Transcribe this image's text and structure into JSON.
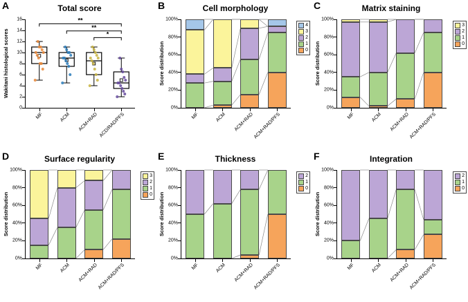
{
  "chart_data": [
    {
      "label": "A",
      "title": "Total score",
      "type": "box",
      "ylabel": "Wakitani histological scores",
      "ymin": 0,
      "ymax": 16,
      "ytick_step": 2,
      "categories": [
        "MF",
        "ACM",
        "ACM+RAD",
        "ACD/RAD/PFS"
      ],
      "boxes": [
        {
          "group": "MF",
          "q1": 8,
          "median": 10,
          "q3": 11,
          "lo": 5,
          "hi": 12,
          "mean": 9.4,
          "color": "#E8893C",
          "points": [
            5,
            7,
            8,
            8,
            9,
            9.5,
            10,
            10,
            10.5,
            11,
            11,
            12
          ]
        },
        {
          "group": "ACM",
          "q1": 7.5,
          "median": 9,
          "q3": 10,
          "lo": 4.5,
          "hi": 11,
          "mean": 8.6,
          "color": "#2E7EBB",
          "points": [
            4.5,
            6,
            7.5,
            8,
            8.5,
            9,
            9,
            9.5,
            10,
            10,
            10.5,
            11
          ]
        },
        {
          "group": "ACM+RAD",
          "q1": 6,
          "median": 8.5,
          "q3": 10,
          "lo": 4,
          "hi": 11,
          "mean": 8.0,
          "color": "#C9B544",
          "points": [
            4,
            5,
            6,
            7,
            8,
            8.5,
            9,
            9,
            9.5,
            10,
            10.5,
            11
          ]
        },
        {
          "group": "ACD/RAD/PFS",
          "q1": 3.5,
          "median": 4.5,
          "q3": 6.5,
          "lo": 2,
          "hi": 9,
          "mean": 5.0,
          "color": "#6A4FA0",
          "points": [
            2,
            2.5,
            3,
            3.5,
            4,
            4.5,
            4.5,
            5,
            5.5,
            6.5,
            7,
            9
          ]
        }
      ],
      "significance": [
        {
          "from": 0,
          "to": 3,
          "sig_label": "**",
          "y": 15.2
        },
        {
          "from": 1,
          "to": 3,
          "sig_label": "**",
          "y": 13.9
        },
        {
          "from": 2,
          "to": 3,
          "sig_label": "*",
          "y": 12.7
        }
      ]
    },
    {
      "label": "B",
      "title": "Cell morphology",
      "type": "stacked",
      "ylabel": "Score distribution",
      "yticks": [
        "0%",
        "20%",
        "40%",
        "60%",
        "80%",
        "100%"
      ],
      "categories": [
        "MF",
        "ACM",
        "ACM+RAD",
        "ACM+RAD/PFS"
      ],
      "legend": [
        {
          "score": "4",
          "color": "#A5C7E9"
        },
        {
          "score": "3",
          "color": "#FBF49B"
        },
        {
          "score": "2",
          "color": "#BCA6D6"
        },
        {
          "score": "1",
          "color": "#A8D38A"
        },
        {
          "score": "0",
          "color": "#F6A45B"
        }
      ],
      "series": [
        {
          "score": "0",
          "color": "#F6A45B",
          "values": [
            0,
            3,
            15,
            40
          ]
        },
        {
          "score": "1",
          "color": "#A8D38A",
          "values": [
            28,
            27,
            40,
            45
          ]
        },
        {
          "score": "2",
          "color": "#BCA6D6",
          "values": [
            10,
            15,
            35,
            7
          ]
        },
        {
          "score": "3",
          "color": "#FBF49B",
          "values": [
            50,
            55,
            10,
            0
          ]
        },
        {
          "score": "4",
          "color": "#A5C7E9",
          "values": [
            12,
            0,
            0,
            8
          ]
        }
      ]
    },
    {
      "label": "C",
      "title": "Matrix staining",
      "type": "stacked",
      "ylabel": "Score distribution",
      "yticks": [
        "0%",
        "20%",
        "40%",
        "60%",
        "80%",
        "100%"
      ],
      "categories": [
        "MF",
        "ACM",
        "ACM+RAD",
        "ACM+RAD/PFS"
      ],
      "legend": [
        {
          "score": "3",
          "color": "#FBF49B"
        },
        {
          "score": "2",
          "color": "#BCA6D6"
        },
        {
          "score": "1",
          "color": "#A8D38A"
        },
        {
          "score": "0",
          "color": "#F6A45B"
        }
      ],
      "series": [
        {
          "score": "0",
          "color": "#F6A45B",
          "values": [
            12,
            2,
            10,
            40
          ]
        },
        {
          "score": "1",
          "color": "#A8D38A",
          "values": [
            23,
            38,
            52,
            45
          ]
        },
        {
          "score": "2",
          "color": "#BCA6D6",
          "values": [
            62,
            57,
            38,
            15
          ]
        },
        {
          "score": "3",
          "color": "#FBF49B",
          "values": [
            3,
            3,
            0,
            0
          ]
        }
      ]
    },
    {
      "label": "D",
      "title": "Surface regularity",
      "type": "stacked",
      "ylabel": "Score distribution",
      "yticks": [
        "0%",
        "20%",
        "40%",
        "60%",
        "80%",
        "100%"
      ],
      "categories": [
        "MF",
        "ACM",
        "ACM+RAD",
        "ACM+RAD/PFS"
      ],
      "legend": [
        {
          "score": "3",
          "color": "#FBF49B"
        },
        {
          "score": "2",
          "color": "#BCA6D6"
        },
        {
          "score": "1",
          "color": "#A8D38A"
        },
        {
          "score": "0",
          "color": "#F6A45B"
        }
      ],
      "series": [
        {
          "score": "0",
          "color": "#F6A45B",
          "values": [
            0,
            0,
            10,
            22
          ]
        },
        {
          "score": "1",
          "color": "#A8D38A",
          "values": [
            15,
            35,
            45,
            56
          ]
        },
        {
          "score": "2",
          "color": "#BCA6D6",
          "values": [
            30,
            45,
            33,
            22
          ]
        },
        {
          "score": "3",
          "color": "#FBF49B",
          "values": [
            55,
            20,
            12,
            0
          ]
        }
      ]
    },
    {
      "label": "E",
      "title": "Thickness",
      "type": "stacked",
      "ylabel": "Score distribution",
      "yticks": [
        "0%",
        "20%",
        "40%",
        "60%",
        "80%",
        "100%"
      ],
      "categories": [
        "MF",
        "ACM",
        "ACM+RAD",
        "ACM+RAD/PFS"
      ],
      "legend": [
        {
          "score": "2",
          "color": "#BCA6D6"
        },
        {
          "score": "1",
          "color": "#A8D38A"
        },
        {
          "score": "0",
          "color": "#F6A45B"
        }
      ],
      "series": [
        {
          "score": "0",
          "color": "#F6A45B",
          "values": [
            0,
            0,
            4,
            50
          ]
        },
        {
          "score": "1",
          "color": "#A8D38A",
          "values": [
            50,
            62,
            74,
            50
          ]
        },
        {
          "score": "2",
          "color": "#BCA6D6",
          "values": [
            50,
            38,
            22,
            0
          ]
        }
      ]
    },
    {
      "label": "F",
      "title": "Integration",
      "type": "stacked",
      "ylabel": "Score distribution",
      "yticks": [
        "0%",
        "20%",
        "40%",
        "60%",
        "80%",
        "100%"
      ],
      "categories": [
        "MF",
        "ACM",
        "ACM+RAD",
        "ACM+RAD/PFS"
      ],
      "legend": [
        {
          "score": "2",
          "color": "#BCA6D6"
        },
        {
          "score": "1",
          "color": "#A8D38A"
        },
        {
          "score": "0",
          "color": "#F6A45B"
        }
      ],
      "series": [
        {
          "score": "0",
          "color": "#F6A45B",
          "values": [
            0,
            0,
            10,
            27
          ]
        },
        {
          "score": "1",
          "color": "#A8D38A",
          "values": [
            20,
            45,
            68,
            17
          ]
        },
        {
          "score": "2",
          "color": "#BCA6D6",
          "values": [
            80,
            55,
            22,
            56
          ]
        }
      ]
    }
  ],
  "style_colors": {
    "axis": "#000000",
    "bar_border": "#4a4a4a",
    "connector": "#8a8a8a"
  }
}
